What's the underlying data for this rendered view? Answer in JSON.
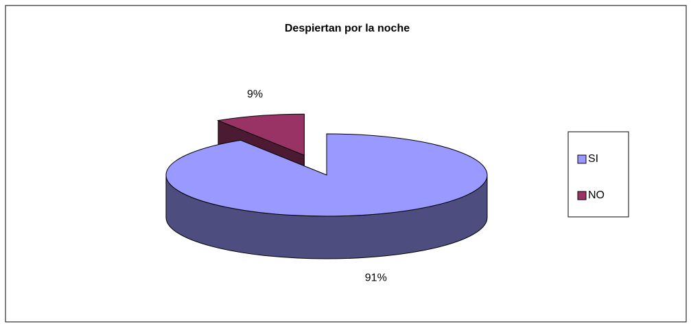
{
  "chart_data": {
    "type": "pie3d",
    "title": "Despiertan por la noche",
    "categories": [
      "SI",
      "NO"
    ],
    "values": [
      91,
      9
    ],
    "value_labels": [
      "91%",
      "9%"
    ],
    "colors": [
      "#9999ff",
      "#993366"
    ]
  }
}
